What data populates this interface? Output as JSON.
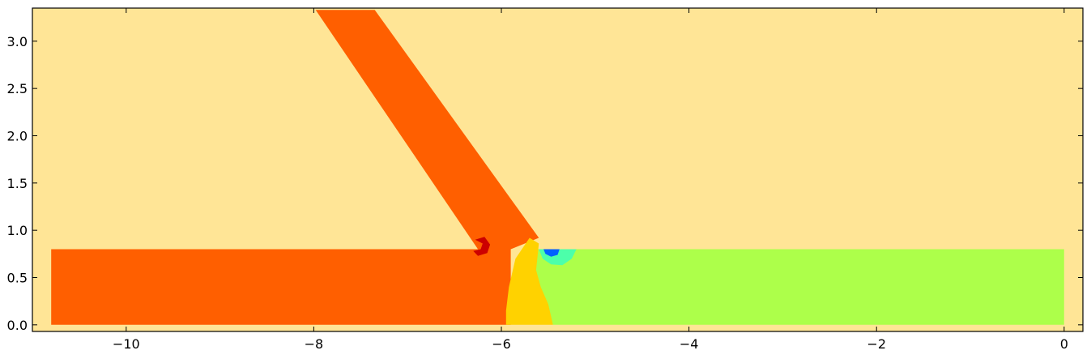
{
  "chart_data": {
    "type": "heatmap",
    "title": "",
    "xlabel": "",
    "ylabel": "",
    "xlim": [
      -11.0,
      0.2
    ],
    "ylim": [
      -0.07,
      3.35
    ],
    "grid": false,
    "legend": "none",
    "x_ticks": [
      -10,
      -8,
      -6,
      -4,
      -2,
      0
    ],
    "x_tick_labels": [
      "−10",
      "−8",
      "−6",
      "−4",
      "−2",
      "0"
    ],
    "y_ticks": [
      0.0,
      0.5,
      1.0,
      1.5,
      2.0,
      2.5,
      3.0
    ],
    "y_tick_labels": [
      "0.0",
      "0.5",
      "1.0",
      "1.5",
      "2.0",
      "2.5",
      "3.0"
    ],
    "colors": {
      "background": "#FFE596",
      "inlet": "#FF5F00",
      "hot_spot": "#CC0000",
      "mixing_zone": "#FFD200",
      "outlet": "#ADFF4A",
      "cool_spot": "#4CFFAA",
      "cold_core": "#0060FF"
    },
    "regions": [
      {
        "name": "horizontal-inlet",
        "color_key": "inlet",
        "points": [
          [
            -10.8,
            0.0
          ],
          [
            -5.9,
            0.0
          ],
          [
            -5.9,
            0.8
          ],
          [
            -10.8,
            0.8
          ]
        ]
      },
      {
        "name": "diagonal-inlet",
        "color_key": "inlet",
        "points": [
          [
            -7.98,
            3.33
          ],
          [
            -7.35,
            3.33
          ],
          [
            -5.6,
            0.92
          ],
          [
            -5.9,
            0.8
          ],
          [
            -6.25,
            0.8
          ]
        ]
      },
      {
        "name": "outlet-channel",
        "color_key": "outlet",
        "points": [
          [
            -5.45,
            0.0
          ],
          [
            0.0,
            0.0
          ],
          [
            0.0,
            0.8
          ],
          [
            -5.65,
            0.8
          ],
          [
            -5.65,
            0.5
          ]
        ]
      },
      {
        "name": "mixing-zone",
        "color_key": "mixing_zone",
        "points": [
          [
            -5.95,
            0.0
          ],
          [
            -5.45,
            0.0
          ],
          [
            -5.5,
            0.22
          ],
          [
            -5.58,
            0.4
          ],
          [
            -5.63,
            0.58
          ],
          [
            -5.6,
            0.86
          ],
          [
            -5.7,
            0.92
          ],
          [
            -5.85,
            0.7
          ],
          [
            -5.92,
            0.4
          ],
          [
            -5.95,
            0.15
          ]
        ]
      },
      {
        "name": "recirculation-zone",
        "color_key": "cool_spot",
        "points": [
          [
            -5.6,
            0.8
          ],
          [
            -5.2,
            0.8
          ],
          [
            -5.25,
            0.7
          ],
          [
            -5.35,
            0.63
          ],
          [
            -5.47,
            0.64
          ],
          [
            -5.56,
            0.7
          ]
        ]
      },
      {
        "name": "vortex-core",
        "color_key": "cold_core",
        "points": [
          [
            -5.55,
            0.8
          ],
          [
            -5.38,
            0.8
          ],
          [
            -5.4,
            0.74
          ],
          [
            -5.47,
            0.72
          ],
          [
            -5.53,
            0.75
          ]
        ]
      },
      {
        "name": "hot-spot",
        "color_key": "hot_spot",
        "points": [
          [
            -6.28,
            0.9
          ],
          [
            -6.18,
            0.93
          ],
          [
            -6.12,
            0.85
          ],
          [
            -6.15,
            0.76
          ],
          [
            -6.25,
            0.73
          ],
          [
            -6.3,
            0.78
          ],
          [
            -6.22,
            0.8
          ],
          [
            -6.2,
            0.86
          ]
        ]
      }
    ]
  }
}
